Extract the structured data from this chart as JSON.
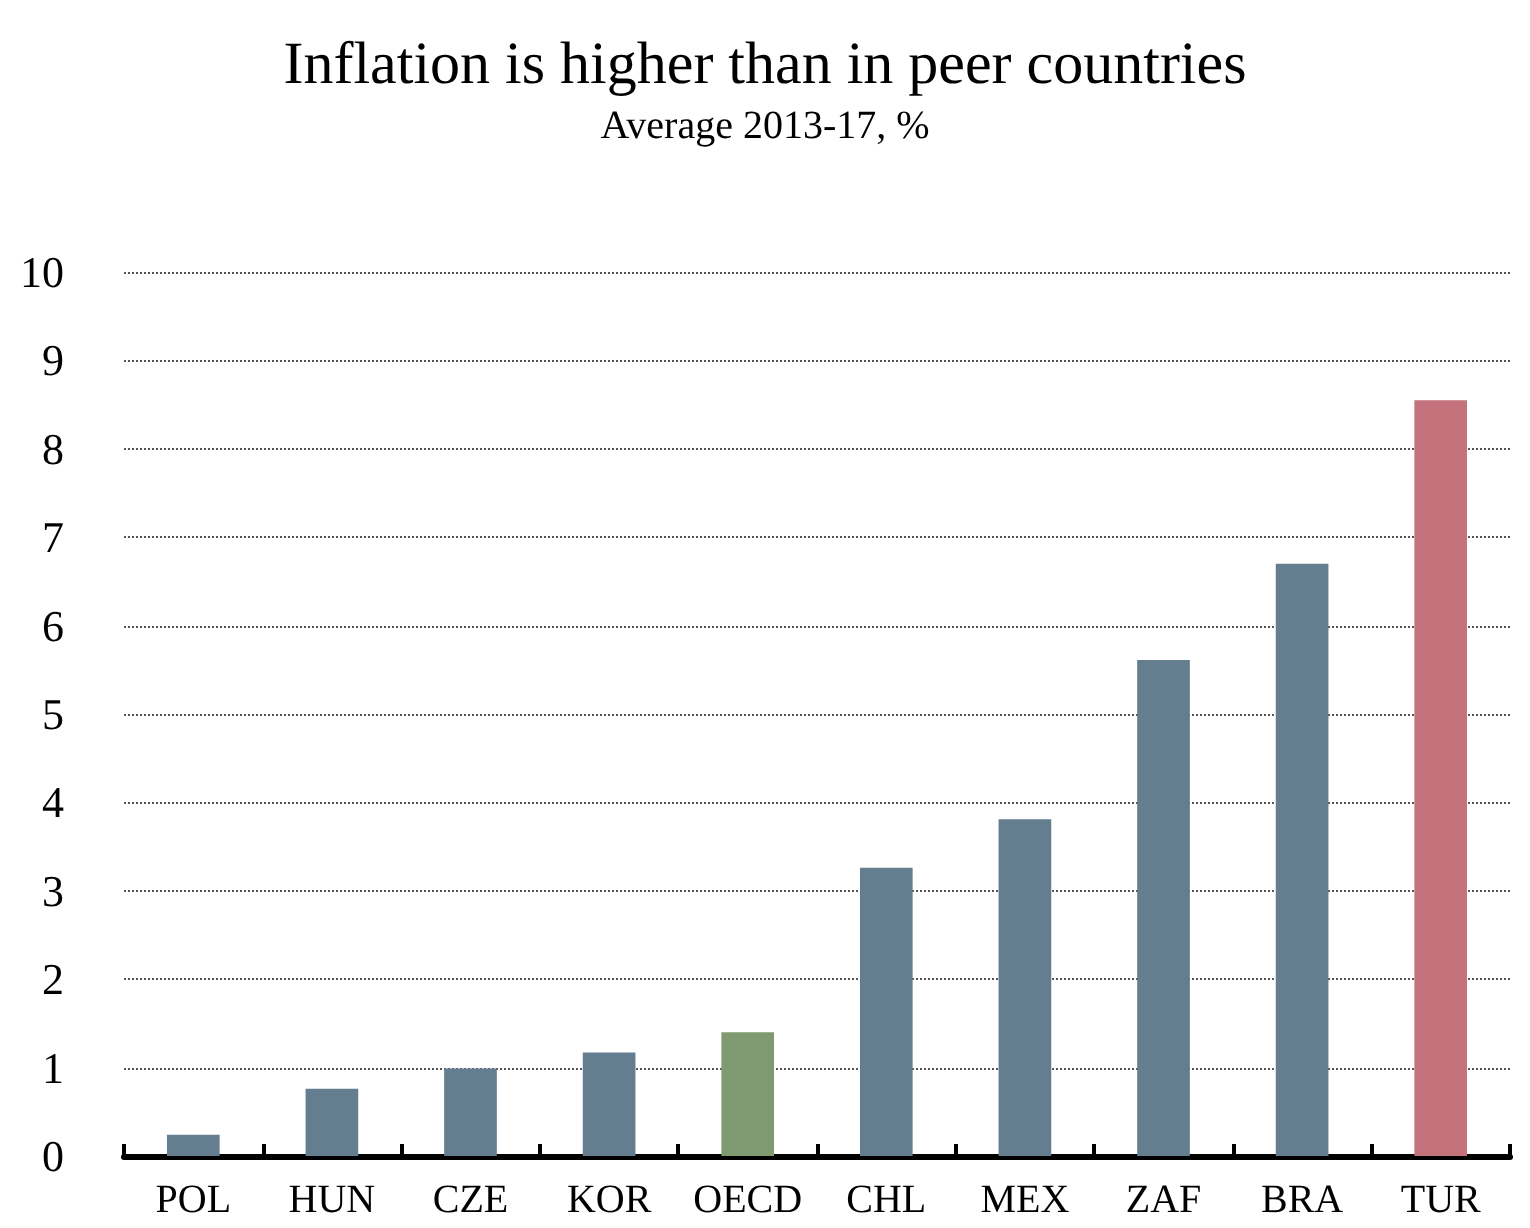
{
  "chart_data": {
    "type": "bar",
    "title": "Inflation is higher than in peer countries",
    "subtitle": "Average 2013-17, %",
    "categories": [
      "POL",
      "HUN",
      "CZE",
      "KOR",
      "OECD",
      "CHL",
      "MEX",
      "ZAF",
      "BRA",
      "TUR"
    ],
    "values": [
      0.24,
      0.76,
      0.99,
      1.17,
      1.4,
      3.26,
      3.81,
      5.61,
      6.7,
      8.55
    ],
    "colors": [
      "#647d8f",
      "#647d8f",
      "#647d8f",
      "#647d8f",
      "#7f9970",
      "#647d8f",
      "#647d8f",
      "#647d8f",
      "#647d8f",
      "#c4737c"
    ],
    "ylim": [
      0,
      10
    ],
    "yticks": [
      0,
      1,
      2,
      3,
      4,
      5,
      6,
      7,
      8,
      9,
      10
    ],
    "grid": "y"
  }
}
